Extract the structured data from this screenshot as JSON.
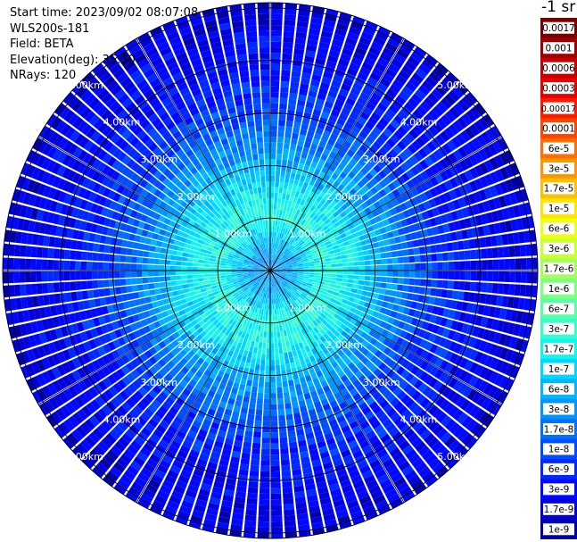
{
  "info": {
    "start_time": "Start time: 2023/09/02 08:07:08",
    "instrument": "WLS200s-181",
    "field": "Field: BETA",
    "elevation": "Elevation(deg): 35.30",
    "nrays": "NRays: 120"
  },
  "colorbar": {
    "unit_label": "-1 sr",
    "ticks": [
      "0.0017",
      "0.001",
      "0.0006",
      "0.0003",
      "0.00017",
      "0.0001",
      "6e-5",
      "3e-5",
      "1.7e-5",
      "1e-5",
      "6e-6",
      "3e-6",
      "1.7e-6",
      "1e-6",
      "6e-7",
      "3e-7",
      "1.7e-7",
      "1e-7",
      "6e-8",
      "3e-8",
      "1.7e-8",
      "1e-8",
      "6e-9",
      "3e-9",
      "1.7e-9",
      "1e-9"
    ],
    "colors": [
      "#7a0000",
      "#a00000",
      "#c80000",
      "#e80000",
      "#ff1a00",
      "#ff4400",
      "#ff6e00",
      "#ff9600",
      "#ffbe00",
      "#ffe600",
      "#f0ff10",
      "#caff34",
      "#a4ff5a",
      "#7eff80",
      "#58ffa6",
      "#34ffcc",
      "#10f6ef",
      "#00d8ff",
      "#00b6ff",
      "#0094ff",
      "#0070ff",
      "#004cff",
      "#0028ff",
      "#0008ff",
      "#0000da",
      "#0000a8"
    ]
  },
  "chart_data": {
    "type": "heatmap",
    "projection": "polar (PPI scan)",
    "field": "BETA",
    "n_rays": 120,
    "elevation_deg": 35.3,
    "range_labels": [
      "1.00km",
      "2.00km",
      "3.00km",
      "4.00km",
      "5.00km"
    ],
    "range_km": [
      1,
      2,
      3,
      4,
      5
    ],
    "max_range_km": 5.1,
    "spoke_angles_deg": [
      0,
      30,
      60,
      90,
      120,
      150,
      180,
      210,
      240,
      270,
      300,
      330
    ],
    "color_scale": "log",
    "vmin": 1e-09,
    "vmax": 0.0017,
    "profile": [
      {
        "range_km": 0.0,
        "log10_beta": -7.5
      },
      {
        "range_km": 0.5,
        "log10_beta": -7.2
      },
      {
        "range_km": 1.0,
        "log10_beta": -6.6
      },
      {
        "range_km": 1.5,
        "log10_beta": -6.8
      },
      {
        "range_km": 2.0,
        "log10_beta": -7.2
      },
      {
        "range_km": 2.5,
        "log10_beta": -7.6
      },
      {
        "range_km": 3.0,
        "log10_beta": -8.0
      },
      {
        "range_km": 4.0,
        "log10_beta": -8.4
      },
      {
        "range_km": 5.0,
        "log10_beta": -8.6
      }
    ]
  }
}
